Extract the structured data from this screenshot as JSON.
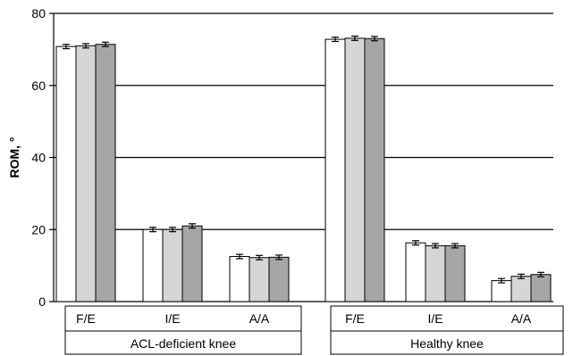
{
  "chart_data": {
    "type": "bar",
    "title": "",
    "ylabel": "ROM, °",
    "xlabel": "",
    "ylim": [
      0,
      80
    ],
    "yticks": [
      0,
      20,
      40,
      60,
      80
    ],
    "grid": "horizontal",
    "groups": [
      {
        "label": "ACL-deficient knee",
        "categories": [
          {
            "label": "F/E",
            "values": [
              70.8,
              71.0,
              71.4
            ],
            "errors": [
              0.6,
              0.6,
              0.6
            ]
          },
          {
            "label": "I/E",
            "values": [
              20.0,
              20.0,
              21.0
            ],
            "errors": [
              0.6,
              0.6,
              0.6
            ]
          },
          {
            "label": "A/A",
            "values": [
              12.5,
              12.2,
              12.3
            ],
            "errors": [
              0.6,
              0.6,
              0.6
            ]
          }
        ]
      },
      {
        "label": "Healthy knee",
        "categories": [
          {
            "label": "F/E",
            "values": [
              72.8,
              73.1,
              73.0
            ],
            "errors": [
              0.6,
              0.6,
              0.6
            ]
          },
          {
            "label": "I/E",
            "values": [
              16.3,
              15.5,
              15.5
            ],
            "errors": [
              0.6,
              0.6,
              0.6
            ]
          },
          {
            "label": "A/A",
            "values": [
              5.8,
              7.0,
              7.5
            ],
            "errors": [
              0.6,
              0.6,
              0.6
            ]
          }
        ]
      }
    ],
    "series_colors": [
      "#ffffff",
      "#d6d6d6",
      "#a6a6a6"
    ]
  }
}
